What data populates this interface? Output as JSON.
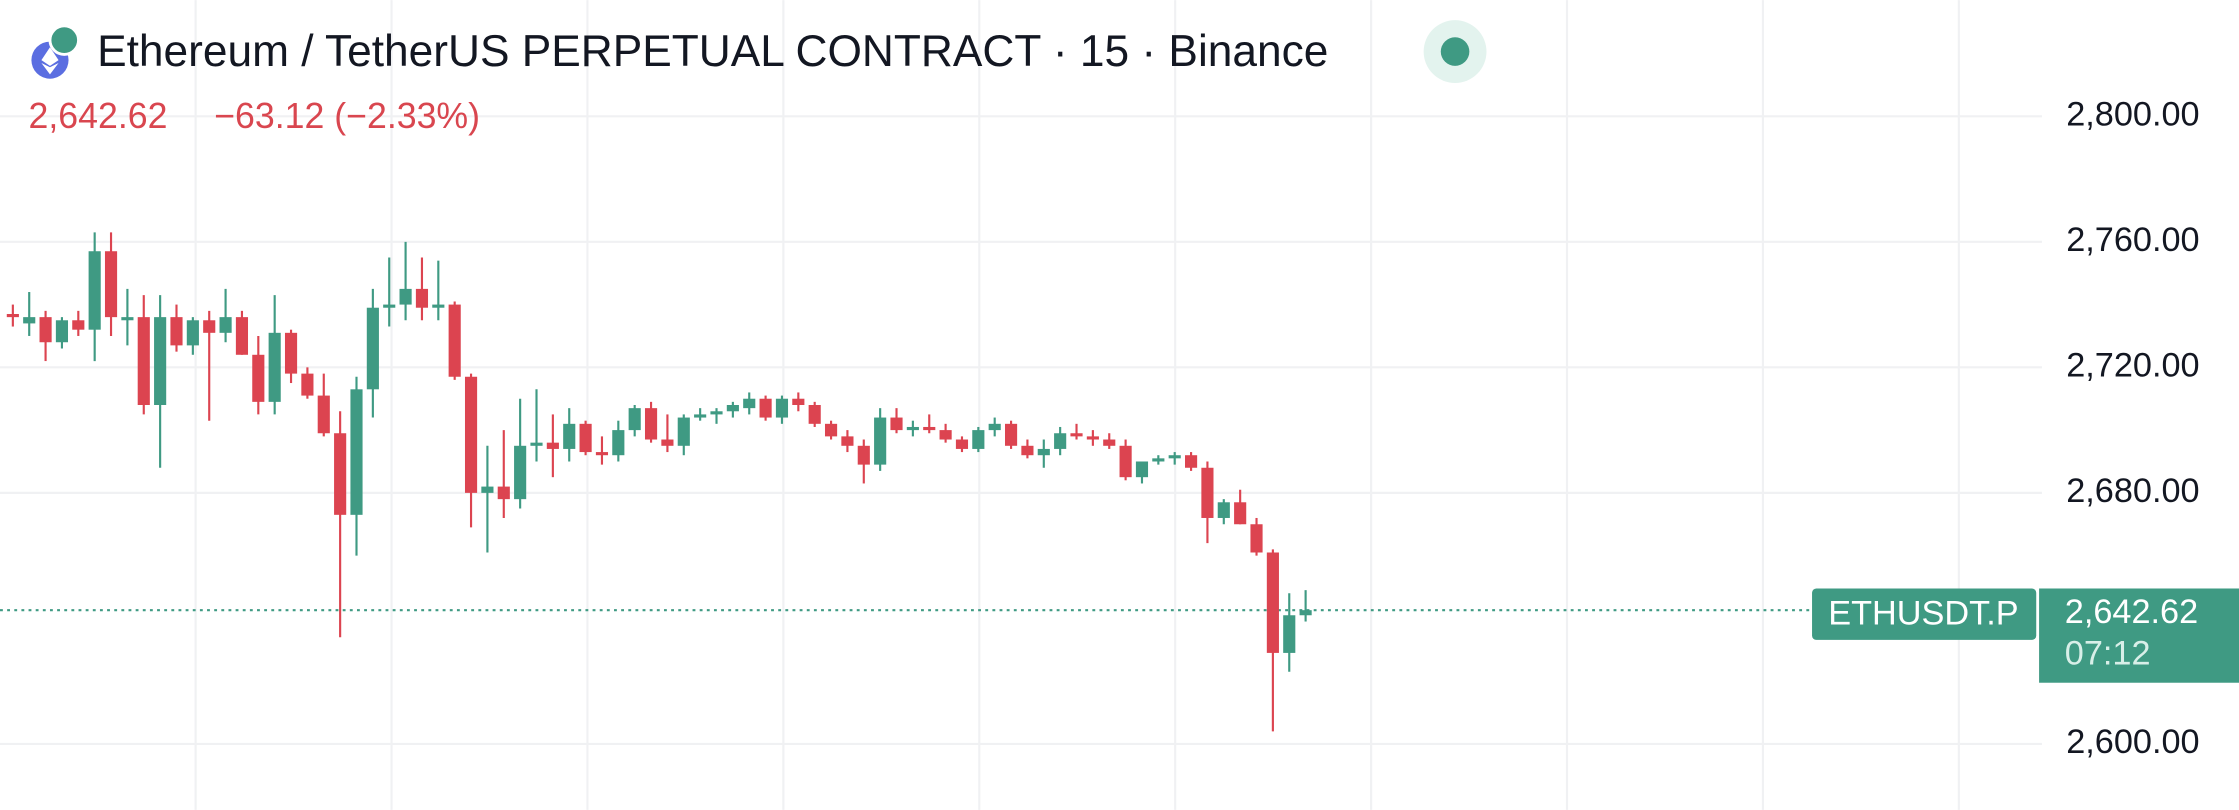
{
  "chart_data": {
    "type": "candlestick",
    "title": "Ethereum / TetherUS PERPETUAL CONTRACT · 15 · Binance",
    "last_price": {
      "value": 2642.62,
      "label": "2,642.62"
    },
    "price_change": "−63.12 (−2.33%)",
    "symbol": "ETHUSDT.P",
    "countdown": "07:12",
    "up_color": "#3f9a83",
    "down_color": "#dc4450",
    "grid": true,
    "ylim": [
      2579,
      2837
    ],
    "yticks": [
      {
        "value": 2600,
        "label": "2,600.00"
      },
      {
        "value": 2680,
        "label": "2,680.00"
      },
      {
        "value": 2720,
        "label": "2,720.00"
      },
      {
        "value": 2760,
        "label": "2,760.00"
      },
      {
        "value": 2800,
        "label": "2,800.00"
      }
    ],
    "open": [
      2737,
      2734,
      2736,
      2728,
      2735,
      2732,
      2757,
      2735,
      2736,
      2708,
      2736,
      2727,
      2735,
      2731,
      2736,
      2724,
      2709,
      2731,
      2718,
      2711,
      2699,
      2673,
      2713,
      2739,
      2740,
      2745,
      2739,
      2740,
      2717,
      2680,
      2682,
      2678,
      2695,
      2696,
      2694,
      2702,
      2693,
      2692,
      2700,
      2707,
      2697,
      2695,
      2704,
      2705,
      2706,
      2707,
      2710,
      2704,
      2710,
      2708,
      2702,
      2698,
      2695,
      2689,
      2704,
      2700,
      2701,
      2700,
      2697,
      2694,
      2700,
      2702,
      2695,
      2692,
      2694,
      2699,
      2698,
      2697,
      2695,
      2685,
      2690,
      2691,
      2692,
      2688,
      2672,
      2677,
      2670,
      2661,
      2629,
      2641
    ],
    "high": [
      2740,
      2744,
      2738,
      2736,
      2738,
      2763,
      2763,
      2745,
      2743,
      2743,
      2740,
      2736,
      2738,
      2745,
      2738,
      2730,
      2743,
      2732,
      2720,
      2718,
      2706,
      2717,
      2745,
      2755,
      2760,
      2755,
      2754,
      2741,
      2718,
      2695,
      2700,
      2710,
      2713,
      2705,
      2707,
      2703,
      2698,
      2703,
      2708,
      2709,
      2705,
      2705,
      2707,
      2707,
      2709,
      2712,
      2711,
      2711,
      2712,
      2709,
      2703,
      2700,
      2697,
      2707,
      2707,
      2703,
      2705,
      2702,
      2698,
      2701,
      2704,
      2703,
      2697,
      2697,
      2701,
      2702,
      2700,
      2699,
      2697,
      2690,
      2692,
      2693,
      2693,
      2690,
      2678,
      2681,
      2672,
      2662,
      2648,
      2649
    ],
    "low": [
      2733,
      2730,
      2722,
      2726,
      2730,
      2722,
      2730,
      2727,
      2705,
      2688,
      2725,
      2724,
      2703,
      2728,
      2724,
      2705,
      2705,
      2715,
      2710,
      2698,
      2634,
      2660,
      2704,
      2733,
      2735,
      2735,
      2735,
      2716,
      2669,
      2661,
      2672,
      2675,
      2690,
      2685,
      2690,
      2692,
      2689,
      2690,
      2698,
      2696,
      2693,
      2692,
      2703,
      2702,
      2704,
      2705,
      2703,
      2702,
      2706,
      2701,
      2697,
      2693,
      2683,
      2687,
      2699,
      2698,
      2699,
      2696,
      2693,
      2693,
      2698,
      2694,
      2691,
      2688,
      2692,
      2697,
      2695,
      2694,
      2684,
      2683,
      2689,
      2689,
      2687,
      2664,
      2670,
      2670,
      2660,
      2604,
      2623,
      2639
    ],
    "close": [
      2736,
      2736,
      2728,
      2735,
      2732,
      2757,
      2736,
      2736,
      2708,
      2736,
      2727,
      2735,
      2731,
      2736,
      2724,
      2709,
      2731,
      2718,
      2711,
      2699,
      2673,
      2713,
      2739,
      2740,
      2745,
      2739,
      2740,
      2717,
      2680,
      2682,
      2678,
      2695,
      2696,
      2694,
      2702,
      2693,
      2692,
      2700,
      2707,
      2697,
      2695,
      2704,
      2705,
      2706,
      2708,
      2710,
      2704,
      2710,
      2708,
      2702,
      2698,
      2695,
      2689,
      2704,
      2700,
      2701,
      2700,
      2697,
      2694,
      2700,
      2702,
      2695,
      2692,
      2694,
      2699,
      2698,
      2697,
      2695,
      2685,
      2690,
      2691,
      2692,
      2688,
      2672,
      2677,
      2670,
      2661,
      2629,
      2641,
      2642.62
    ]
  }
}
